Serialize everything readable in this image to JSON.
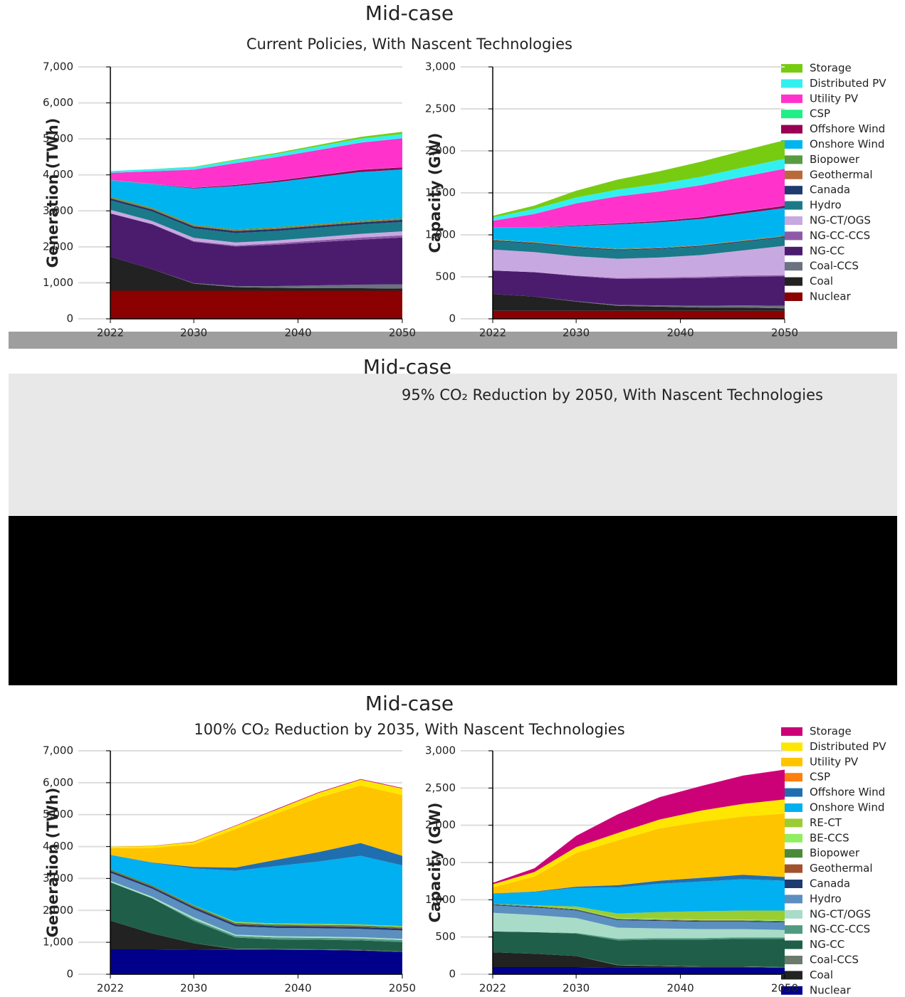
{
  "chart_data": [
    {
      "type": "area",
      "title": "Mid-case",
      "subtitle": "Current Policies, With Nascent Technologies",
      "x": [
        2022,
        2026,
        2030,
        2034,
        2038,
        2042,
        2046,
        2050
      ],
      "xlim": [
        2022,
        2050
      ],
      "xticks": [
        2022,
        2030,
        2040,
        2050
      ],
      "ylim": [
        0,
        7000
      ],
      "yticks": [
        0,
        {
          "value": 1000,
          "label": "1,000"
        },
        {
          "value": 2000,
          "label": "2,000"
        },
        {
          "value": 3000,
          "label": "3,000"
        },
        {
          "value": 4000,
          "label": "4,000"
        },
        {
          "value": 5000,
          "label": "5,000"
        },
        {
          "value": 6000,
          "label": "6,000"
        },
        {
          "value": 7000,
          "label": "7,000"
        }
      ],
      "ylabel": "Generation (TWh)",
      "grid": true,
      "series": [
        {
          "name": "Nuclear",
          "color": "#8b0000",
          "values": [
            780,
            780,
            780,
            780,
            780,
            780,
            780,
            780
          ]
        },
        {
          "name": "Coal",
          "color": "#222222",
          "values": [
            950,
            600,
            200,
            100,
            80,
            70,
            70,
            60
          ]
        },
        {
          "name": "Coal-CCS",
          "color": "#6b7280",
          "values": [
            0,
            0,
            10,
            30,
            50,
            80,
            100,
            120
          ]
        },
        {
          "name": "NG-CC",
          "color": "#4b1c6e",
          "values": [
            1200,
            1250,
            1150,
            1100,
            1150,
            1200,
            1250,
            1300
          ]
        },
        {
          "name": "NG-CC-CCS",
          "color": "#8e5aa8",
          "values": [
            0,
            0,
            20,
            30,
            40,
            50,
            60,
            60
          ]
        },
        {
          "name": "NG-CT/OGS",
          "color": "#c8a8e0",
          "values": [
            100,
            90,
            90,
            80,
            80,
            90,
            100,
            110
          ]
        },
        {
          "name": "Hydro",
          "color": "#1a7a8a",
          "values": [
            260,
            260,
            260,
            260,
            260,
            260,
            260,
            260
          ]
        },
        {
          "name": "Canada",
          "color": "#1f3a6e",
          "values": [
            60,
            60,
            60,
            60,
            60,
            60,
            60,
            60
          ]
        },
        {
          "name": "Geothermal",
          "color": "#b86a3a",
          "values": [
            20,
            20,
            20,
            20,
            20,
            20,
            20,
            20
          ]
        },
        {
          "name": "Biopower",
          "color": "#5a9a40",
          "values": [
            30,
            30,
            30,
            30,
            30,
            30,
            30,
            30
          ]
        },
        {
          "name": "Onshore Wind",
          "color": "#00b4f0",
          "values": [
            450,
            650,
            1000,
            1200,
            1250,
            1300,
            1350,
            1350
          ]
        },
        {
          "name": "Offshore Wind",
          "color": "#990055",
          "values": [
            0,
            5,
            20,
            30,
            40,
            50,
            60,
            60
          ]
        },
        {
          "name": "CSP",
          "color": "#22ee88",
          "values": [
            5,
            5,
            5,
            5,
            5,
            5,
            5,
            5
          ]
        },
        {
          "name": "Utility PV",
          "color": "#ff33cc",
          "values": [
            200,
            350,
            500,
            600,
            650,
            700,
            750,
            800
          ]
        },
        {
          "name": "Distributed PV",
          "color": "#33f0f0",
          "values": [
            50,
            60,
            70,
            80,
            90,
            100,
            110,
            120
          ]
        },
        {
          "name": "Storage",
          "color": "#77cc11",
          "values": [
            0,
            0,
            10,
            20,
            30,
            40,
            50,
            60
          ]
        }
      ]
    },
    {
      "type": "area",
      "x": [
        2022,
        2026,
        2030,
        2034,
        2038,
        2042,
        2046,
        2050
      ],
      "xlim": [
        2022,
        2050
      ],
      "xticks": [
        2022,
        2030,
        2040,
        2050
      ],
      "ylim": [
        0,
        3000
      ],
      "yticks": [
        0,
        500,
        {
          "value": 1000,
          "label": "1,000"
        },
        {
          "value": 1500,
          "label": "1,500"
        },
        {
          "value": 2000,
          "label": "2,000"
        },
        {
          "value": 2500,
          "label": "2,500"
        },
        {
          "value": 3000,
          "label": "3,000"
        }
      ],
      "ylabel": "Capacity (GW)",
      "grid": true,
      "series": [
        {
          "color": "#8b0000",
          "values": [
            95,
            95,
            95,
            95,
            95,
            95,
            95,
            95
          ]
        },
        {
          "color": "#222222",
          "values": [
            200,
            170,
            110,
            60,
            50,
            40,
            40,
            30
          ]
        },
        {
          "color": "#6b7280",
          "values": [
            0,
            0,
            5,
            10,
            15,
            20,
            25,
            30
          ]
        },
        {
          "color": "#4b1c6e",
          "values": [
            280,
            290,
            300,
            310,
            320,
            330,
            340,
            350
          ]
        },
        {
          "color": "#8e5aa8",
          "values": [
            0,
            0,
            5,
            10,
            10,
            15,
            15,
            15
          ]
        },
        {
          "color": "#c8a8e0",
          "values": [
            250,
            240,
            230,
            230,
            240,
            260,
            300,
            350
          ]
        },
        {
          "color": "#1a7a8a",
          "values": [
            100,
            100,
            100,
            100,
            100,
            100,
            100,
            100
          ]
        },
        {
          "color": "#1f3a6e",
          "values": [
            10,
            10,
            10,
            10,
            10,
            10,
            10,
            10
          ]
        },
        {
          "color": "#b86a3a",
          "values": [
            5,
            5,
            5,
            5,
            5,
            5,
            5,
            5
          ]
        },
        {
          "color": "#5a9a40",
          "values": [
            5,
            5,
            5,
            5,
            5,
            5,
            5,
            5
          ]
        },
        {
          "color": "#00b4f0",
          "values": [
            140,
            170,
            240,
            290,
            300,
            310,
            320,
            330
          ]
        },
        {
          "color": "#990055",
          "values": [
            0,
            2,
            8,
            12,
            15,
            20,
            25,
            25
          ]
        },
        {
          "color": "#22ee88",
          "values": [
            2,
            2,
            2,
            2,
            2,
            2,
            2,
            2
          ]
        },
        {
          "color": "#ff33cc",
          "values": [
            80,
            160,
            260,
            320,
            350,
            380,
            410,
            440
          ]
        },
        {
          "color": "#33f0f0",
          "values": [
            40,
            60,
            70,
            80,
            90,
            100,
            110,
            120
          ]
        },
        {
          "color": "#77cc11",
          "values": [
            20,
            40,
            80,
            120,
            150,
            180,
            200,
            220
          ]
        }
      ]
    },
    {
      "type": "area",
      "title": "Mid-case",
      "subtitle": "100% CO₂ Reduction by 2035, With Nascent Technologies",
      "x": [
        2022,
        2026,
        2030,
        2034,
        2038,
        2042,
        2046,
        2050
      ],
      "xlim": [
        2022,
        2050
      ],
      "xticks": [
        2022,
        2030,
        2040,
        2050
      ],
      "ylim": [
        0,
        7000
      ],
      "yticks": [
        0,
        {
          "value": 1000,
          "label": "1,000"
        },
        {
          "value": 2000,
          "label": "2,000"
        },
        {
          "value": 3000,
          "label": "3,000"
        },
        {
          "value": 4000,
          "label": "4,000"
        },
        {
          "value": 5000,
          "label": "5,000"
        },
        {
          "value": 6000,
          "label": "6,000"
        },
        {
          "value": 7000,
          "label": "7,000"
        }
      ],
      "ylabel": "Generation (TWh)",
      "grid": true,
      "series": [
        {
          "name": "Nuclear",
          "color": "#00008b",
          "values": [
            780,
            780,
            770,
            760,
            760,
            760,
            740,
            700
          ]
        },
        {
          "name": "Coal",
          "color": "#222222",
          "values": [
            900,
            500,
            200,
            30,
            20,
            10,
            10,
            0
          ]
        },
        {
          "name": "Coal-CCS",
          "color": "#6b7b6b",
          "values": [
            0,
            0,
            0,
            10,
            10,
            10,
            10,
            10
          ]
        },
        {
          "name": "NG-CC",
          "color": "#1f5f4a",
          "values": [
            1200,
            1100,
            700,
            350,
            300,
            300,
            300,
            300
          ]
        },
        {
          "name": "NG-CC-CCS",
          "color": "#4f9a80",
          "values": [
            0,
            0,
            50,
            50,
            60,
            60,
            60,
            60
          ]
        },
        {
          "name": "NG-CT/OGS",
          "color": "#a8dcc8",
          "values": [
            50,
            50,
            60,
            40,
            40,
            40,
            40,
            40
          ]
        },
        {
          "name": "Hydro",
          "color": "#5b8fbf",
          "values": [
            250,
            250,
            260,
            260,
            260,
            260,
            260,
            260
          ]
        },
        {
          "name": "Canada",
          "color": "#1f3a6e",
          "values": [
            60,
            60,
            60,
            60,
            60,
            60,
            60,
            60
          ]
        },
        {
          "name": "Geothermal",
          "color": "#a0522d",
          "values": [
            20,
            20,
            20,
            20,
            20,
            20,
            20,
            20
          ]
        },
        {
          "name": "Biopower",
          "color": "#4a8a3a",
          "values": [
            30,
            30,
            30,
            30,
            30,
            30,
            30,
            30
          ]
        },
        {
          "name": "BE-CCS",
          "color": "#90ee60",
          "values": [
            0,
            0,
            0,
            10,
            10,
            10,
            10,
            10
          ]
        },
        {
          "name": "RE-CT",
          "color": "#9acd32",
          "values": [
            0,
            0,
            10,
            20,
            20,
            20,
            20,
            20
          ]
        },
        {
          "name": "Onshore Wind",
          "color": "#00b0f0",
          "values": [
            450,
            700,
            1150,
            1600,
            1800,
            1950,
            2150,
            1900
          ]
        },
        {
          "name": "Offshore Wind",
          "color": "#1f6fb0",
          "values": [
            0,
            10,
            50,
            100,
            200,
            300,
            400,
            300
          ]
        },
        {
          "name": "CSP",
          "color": "#ff7f0e",
          "values": [
            5,
            5,
            5,
            5,
            5,
            5,
            5,
            5
          ]
        },
        {
          "name": "Utility PV",
          "color": "#ffc400",
          "values": [
            200,
            450,
            700,
            1200,
            1450,
            1700,
            1800,
            1900
          ]
        },
        {
          "name": "Distributed PV",
          "color": "#ffe600",
          "values": [
            50,
            60,
            80,
            100,
            120,
            150,
            180,
            200
          ]
        },
        {
          "name": "Storage",
          "color": "#cc0077",
          "values": [
            0,
            5,
            10,
            15,
            20,
            20,
            20,
            20
          ]
        }
      ]
    },
    {
      "type": "area",
      "x": [
        2022,
        2026,
        2030,
        2034,
        2038,
        2042,
        2046,
        2050
      ],
      "xlim": [
        2022,
        2050
      ],
      "xticks": [
        2022,
        2030,
        2040,
        2050
      ],
      "ylim": [
        0,
        3000
      ],
      "yticks": [
        0,
        500,
        {
          "value": 1000,
          "label": "1,000"
        },
        {
          "value": 1500,
          "label": "1,500"
        },
        {
          "value": 2000,
          "label": "2,000"
        },
        {
          "value": 2500,
          "label": "2,500"
        },
        {
          "value": 3000,
          "label": "3,000"
        }
      ],
      "ylabel": "Capacity (GW)",
      "grid": true,
      "series": [
        {
          "color": "#00008b",
          "values": [
            95,
            95,
            95,
            90,
            90,
            90,
            90,
            90
          ]
        },
        {
          "color": "#222222",
          "values": [
            200,
            180,
            150,
            30,
            20,
            10,
            10,
            0
          ]
        },
        {
          "color": "#6b7b6b",
          "values": [
            0,
            0,
            0,
            5,
            5,
            5,
            5,
            5
          ]
        },
        {
          "color": "#1f5f4a",
          "values": [
            280,
            290,
            300,
            330,
            350,
            360,
            370,
            380
          ]
        },
        {
          "color": "#4f9a80",
          "values": [
            0,
            0,
            10,
            20,
            20,
            20,
            20,
            20
          ]
        },
        {
          "color": "#a8dcc8",
          "values": [
            250,
            230,
            200,
            150,
            130,
            120,
            110,
            100
          ]
        },
        {
          "color": "#5b8fbf",
          "values": [
            100,
            100,
            100,
            100,
            100,
            100,
            100,
            100
          ]
        },
        {
          "color": "#1f3a6e",
          "values": [
            10,
            10,
            10,
            10,
            10,
            10,
            10,
            10
          ]
        },
        {
          "color": "#a0522d",
          "values": [
            5,
            5,
            5,
            5,
            5,
            5,
            5,
            5
          ]
        },
        {
          "color": "#4a8a3a",
          "values": [
            5,
            5,
            5,
            5,
            5,
            5,
            5,
            5
          ]
        },
        {
          "color": "#90ee60",
          "values": [
            0,
            0,
            5,
            10,
            10,
            10,
            10,
            10
          ]
        },
        {
          "color": "#9acd32",
          "values": [
            0,
            10,
            30,
            60,
            90,
            110,
            120,
            130
          ]
        },
        {
          "color": "#00b0f0",
          "values": [
            140,
            180,
            250,
            350,
            380,
            400,
            420,
            400
          ]
        },
        {
          "color": "#1f6fb0",
          "values": [
            0,
            5,
            15,
            30,
            40,
            50,
            60,
            50
          ]
        },
        {
          "color": "#ff7f0e",
          "values": [
            2,
            2,
            2,
            2,
            2,
            2,
            2,
            2
          ]
        },
        {
          "color": "#ffc400",
          "values": [
            80,
            200,
            450,
            600,
            700,
            750,
            780,
            850
          ]
        },
        {
          "color": "#ffe600",
          "values": [
            40,
            60,
            80,
            100,
            120,
            150,
            170,
            190
          ]
        },
        {
          "color": "#cc0077",
          "values": [
            20,
            50,
            150,
            250,
            300,
            330,
            380,
            400
          ]
        }
      ]
    }
  ],
  "glitched_panel": {
    "title": "Mid-case",
    "subtitle": "95% CO₂ Reduction by 2050, With Nascent Technologies"
  }
}
